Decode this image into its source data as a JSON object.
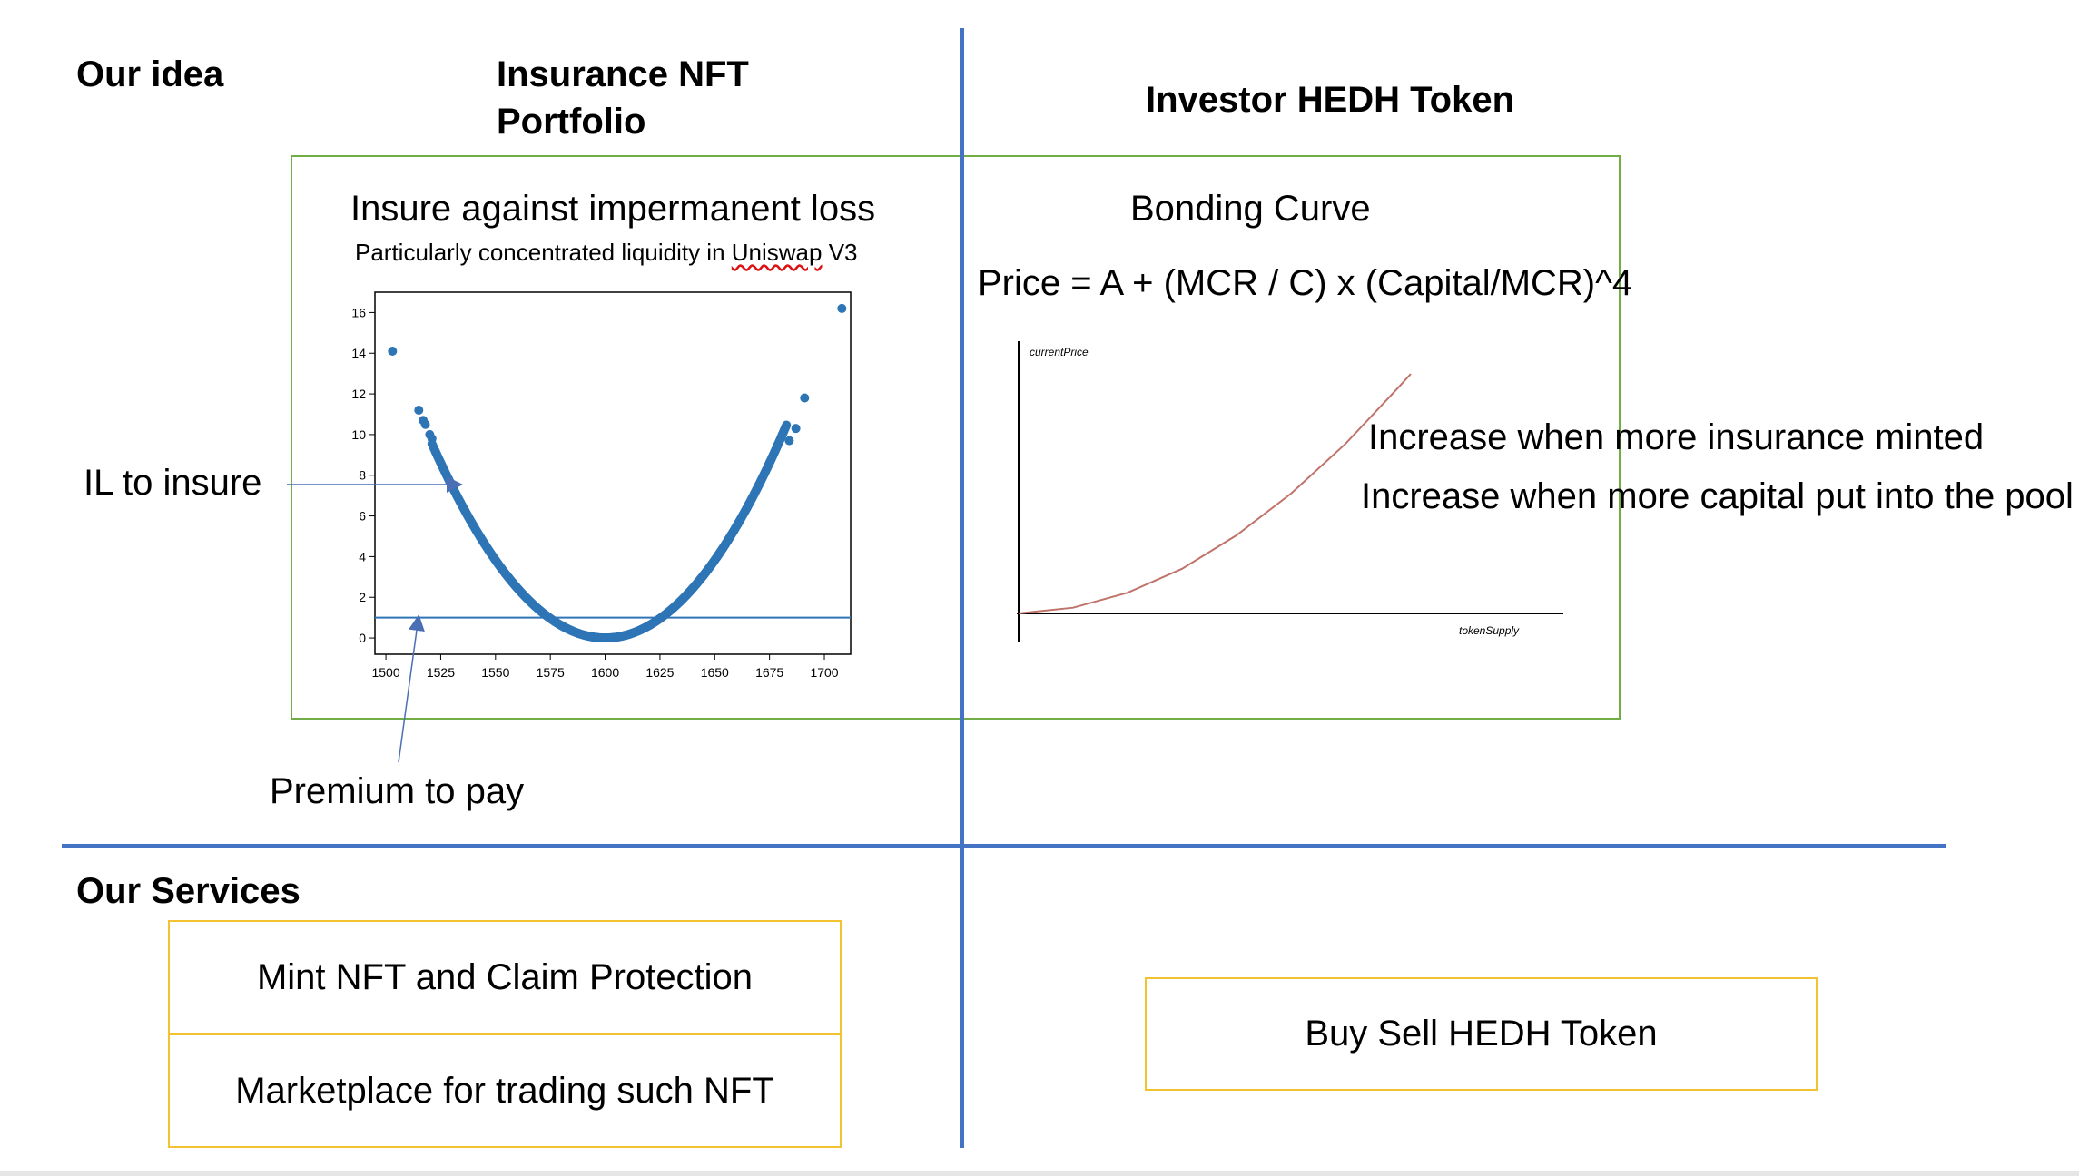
{
  "headings": {
    "our_idea": "Our idea",
    "insurance_nft": "Insurance NFT\nPortfolio",
    "investor_token": "Investor HEDH Token",
    "our_services": "Our Services"
  },
  "left_panel": {
    "title": "Insure against impermanent loss",
    "subtitle_prefix": "Particularly concentrated liquidity in ",
    "subtitle_underlined": "Uniswap",
    "subtitle_suffix": " V3"
  },
  "right_panel": {
    "title": "Bonding Curve",
    "formula": "Price = A + (MCR / C) x (Capital/MCR)^4",
    "note1": "Increase when more insurance minted",
    "note2": "Increase when more capital put into the pool"
  },
  "annotations": {
    "il_to_insure": "IL to insure",
    "premium_to_pay": "Premium to pay"
  },
  "services": {
    "mint": "Mint NFT and Claim Protection",
    "marketplace": "Marketplace for trading such NFT",
    "buy_sell": "Buy Sell HEDH Token"
  },
  "colors": {
    "divider": "#4472c4",
    "green_box": "#70ad47",
    "service_box": "#f2c230",
    "scatter": "#2e75b6",
    "bonding_curve": "#c0736a"
  },
  "chart_data": [
    {
      "type": "scatter",
      "title": "",
      "xlabel": "",
      "ylabel": "",
      "xlim": [
        1495,
        1712
      ],
      "ylim": [
        -0.8,
        17
      ],
      "x_ticks": [
        1500,
        1525,
        1550,
        1575,
        1600,
        1625,
        1650,
        1675,
        1700
      ],
      "y_ticks": [
        0,
        2,
        4,
        6,
        8,
        10,
        12,
        14,
        16
      ],
      "series": [
        {
          "points": [
            [
              1503,
              14.1
            ],
            [
              1515,
              11.2
            ],
            [
              1517,
              10.7
            ],
            [
              1518,
              10.5
            ],
            [
              1520,
              10.0
            ],
            [
              1521,
              9.8
            ],
            [
              1684,
              9.7
            ],
            [
              1687,
              10.3
            ],
            [
              1691,
              11.8
            ],
            [
              1708,
              16.2
            ]
          ],
          "dense_curve": {
            "x_start": 1521,
            "x_end": 1683,
            "center": 1600,
            "coefficient": 0.00153
          }
        }
      ],
      "horizontal_line": 1.0
    },
    {
      "type": "line",
      "title": "",
      "xlabel": "tokenSupply",
      "ylabel": "currentPrice",
      "xlim": [
        0,
        1
      ],
      "ylim": [
        0,
        1
      ],
      "series": [
        {
          "x": [
            0,
            0.1,
            0.2,
            0.3,
            0.4,
            0.5,
            0.6,
            0.7,
            0.72
          ],
          "y": [
            0,
            0.021,
            0.076,
            0.164,
            0.287,
            0.44,
            0.623,
            0.836,
            0.88
          ]
        }
      ]
    }
  ]
}
